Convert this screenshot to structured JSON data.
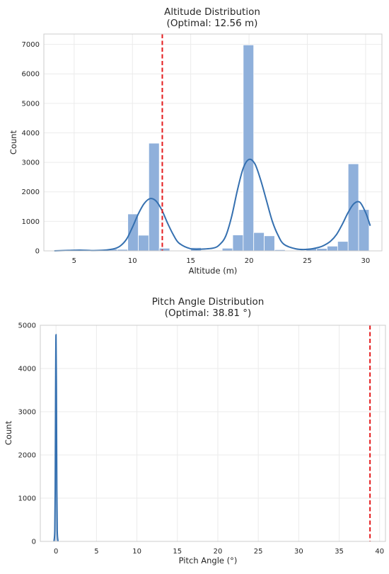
{
  "chart_data": [
    {
      "type": "bar",
      "title": "Altitude Distribution",
      "subtitle": "(Optimal: 12.56 m)",
      "xlabel": "Altitude (m)",
      "ylabel": "Count",
      "xlim": [
        2.4,
        31.4
      ],
      "ylim": [
        0,
        7350
      ],
      "xticks": [
        5,
        10,
        15,
        20,
        25,
        30
      ],
      "yticks": [
        0,
        1000,
        2000,
        3000,
        4000,
        5000,
        6000,
        7000
      ],
      "grid": true,
      "bar_color": "#8fb0db",
      "kde_color": "#3570b0",
      "optimal_line": {
        "x": 12.56,
        "color": "#e41a1c",
        "style": "dashed"
      },
      "bins": [
        {
          "x0": 3.3,
          "x1": 4.2,
          "count": 0
        },
        {
          "x0": 4.2,
          "x1": 5.1,
          "count": 0
        },
        {
          "x0": 5.1,
          "x1": 6.0,
          "count": 0
        },
        {
          "x0": 6.0,
          "x1": 6.9,
          "count": 0
        },
        {
          "x0": 6.9,
          "x1": 7.8,
          "count": 0
        },
        {
          "x0": 7.8,
          "x1": 8.7,
          "count": 60
        },
        {
          "x0": 8.7,
          "x1": 9.6,
          "count": 50
        },
        {
          "x0": 9.6,
          "x1": 10.5,
          "count": 1250
        },
        {
          "x0": 10.5,
          "x1": 11.4,
          "count": 530
        },
        {
          "x0": 11.4,
          "x1": 12.3,
          "count": 3650
        },
        {
          "x0": 12.3,
          "x1": 13.2,
          "count": 90
        },
        {
          "x0": 13.2,
          "x1": 14.1,
          "count": 0
        },
        {
          "x0": 14.1,
          "x1": 15.0,
          "count": 0
        },
        {
          "x0": 15.0,
          "x1": 15.9,
          "count": 110
        },
        {
          "x0": 15.9,
          "x1": 16.8,
          "count": 0
        },
        {
          "x0": 16.8,
          "x1": 17.7,
          "count": 0
        },
        {
          "x0": 17.7,
          "x1": 18.6,
          "count": 90
        },
        {
          "x0": 18.6,
          "x1": 19.5,
          "count": 540
        },
        {
          "x0": 19.5,
          "x1": 20.4,
          "count": 6980
        },
        {
          "x0": 20.4,
          "x1": 21.3,
          "count": 620
        },
        {
          "x0": 21.3,
          "x1": 22.2,
          "count": 510
        },
        {
          "x0": 22.2,
          "x1": 23.1,
          "count": 40
        },
        {
          "x0": 23.1,
          "x1": 24.0,
          "count": 0
        },
        {
          "x0": 24.0,
          "x1": 24.9,
          "count": 0
        },
        {
          "x0": 24.9,
          "x1": 25.8,
          "count": 90
        },
        {
          "x0": 25.8,
          "x1": 26.7,
          "count": 80
        },
        {
          "x0": 26.7,
          "x1": 27.6,
          "count": 160
        },
        {
          "x0": 27.6,
          "x1": 28.5,
          "count": 320
        },
        {
          "x0": 28.5,
          "x1": 29.4,
          "count": 2950
        },
        {
          "x0": 29.4,
          "x1": 30.3,
          "count": 1400
        }
      ],
      "kde": {
        "x": [
          3.3,
          4.5,
          5.5,
          6.5,
          7.5,
          8.5,
          9.0,
          9.5,
          10.0,
          10.5,
          11.0,
          11.5,
          12.0,
          12.5,
          13.0,
          13.5,
          14.0,
          15.0,
          16.0,
          17.0,
          17.5,
          18.0,
          18.5,
          19.0,
          19.5,
          20.0,
          20.5,
          21.0,
          21.5,
          22.0,
          22.5,
          23.0,
          24.0,
          25.0,
          26.0,
          26.5,
          27.0,
          27.5,
          28.0,
          28.5,
          29.0,
          29.5,
          30.0,
          30.4
        ],
        "y": [
          0,
          15,
          25,
          10,
          20,
          80,
          180,
          400,
          800,
          1250,
          1600,
          1770,
          1700,
          1400,
          950,
          550,
          260,
          70,
          60,
          100,
          220,
          500,
          1150,
          2050,
          2800,
          3100,
          2950,
          2400,
          1700,
          1000,
          520,
          220,
          70,
          50,
          120,
          200,
          330,
          550,
          900,
          1300,
          1600,
          1650,
          1300,
          850
        ]
      }
    },
    {
      "type": "area",
      "title": "Pitch Angle Distribution",
      "subtitle": "(Optimal: 38.81 °)",
      "xlabel": "Pitch Angle (°)",
      "ylabel": "Count",
      "xlim": [
        -1.94,
        40.72
      ],
      "ylim": [
        0,
        5000
      ],
      "xticks": [
        0,
        5,
        10,
        15,
        20,
        25,
        30,
        35,
        40
      ],
      "yticks": [
        0,
        1000,
        2000,
        3000,
        4000,
        5000
      ],
      "grid": true,
      "kde_color": "#3570b0",
      "optimal_line": {
        "x": 38.81,
        "color": "#e41a1c",
        "style": "dashed"
      },
      "kde": {
        "x": [
          -0.25,
          -0.15,
          -0.1,
          -0.05,
          0.0,
          0.05,
          0.1,
          0.15,
          0.25
        ],
        "y": [
          0,
          250,
          1200,
          3500,
          4780,
          3500,
          1200,
          250,
          0
        ]
      }
    }
  ]
}
